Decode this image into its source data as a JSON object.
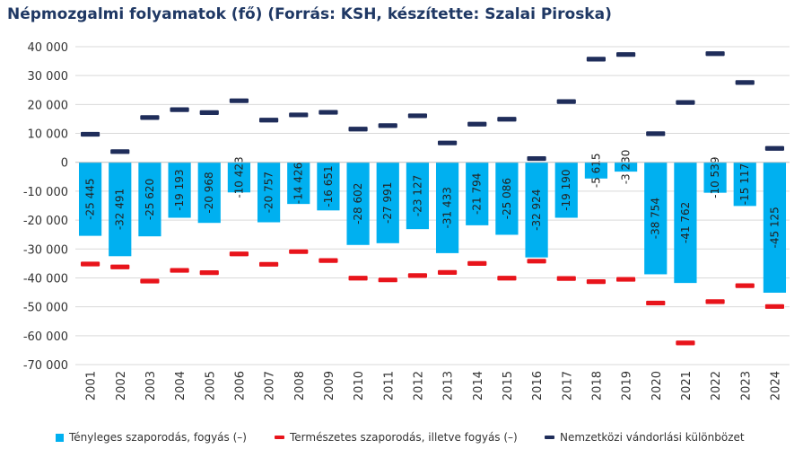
{
  "chart_data": {
    "type": "bar",
    "title": "Népmozgalmi folyamatok (fő) (Forrás: KSH, készítette: Szalai Piroska)",
    "categories": [
      "2001",
      "2002",
      "2003",
      "2004",
      "2005",
      "2006",
      "2007",
      "2008",
      "2009",
      "2010",
      "2011",
      "2012",
      "2013",
      "2014",
      "2015",
      "2016",
      "2017",
      "2018",
      "2019",
      "2020",
      "2021",
      "2022",
      "2023",
      "2024"
    ],
    "ylim": [
      -70000,
      40000
    ],
    "yticks": [
      40000,
      30000,
      20000,
      10000,
      0,
      -10000,
      -20000,
      -30000,
      -40000,
      -50000,
      -60000,
      -70000
    ],
    "ytick_labels": [
      "40 000",
      "30 000",
      "20 000",
      "10 000",
      "0",
      "-10 000",
      "-20 000",
      "-30 000",
      "-40 000",
      "-50 000",
      "-60 000",
      "-70 000"
    ],
    "grid": true,
    "legend_position": "bottom",
    "series": [
      {
        "name": "Tényleges szaporodás, fogyás (–)",
        "type": "bar",
        "color": "#00b0f0",
        "values": [
          -25445,
          -32491,
          -25620,
          -19193,
          -20968,
          -10423,
          -20757,
          -14426,
          -16651,
          -28602,
          -27991,
          -23127,
          -31433,
          -21794,
          -25086,
          -32924,
          -19190,
          -5615,
          -3230,
          -38754,
          -41762,
          -10539,
          -15117,
          -45125
        ],
        "labels": [
          "-25 445",
          "-32 491",
          "-25 620",
          "-19 193",
          "-20 968",
          "-10 423",
          "-20 757",
          "-14 426",
          "-16 651",
          "-28 602",
          "-27 991",
          "-23 127",
          "-31 433",
          "-21 794",
          "-25 086",
          "-32 924",
          "-19 190",
          "-5 615",
          "-3 230",
          "-38 754",
          "-41 762",
          "-10 539",
          "-15 117",
          "-45 125"
        ]
      },
      {
        "name": "Természetes szaporodás, illetve fogyás (–)",
        "type": "marker",
        "color": "#e8141b",
        "values": [
          -35200,
          -36200,
          -41100,
          -37400,
          -38200,
          -31700,
          -35300,
          -30900,
          -34000,
          -40100,
          -40700,
          -39200,
          -38100,
          -35000,
          -40100,
          -34200,
          -40200,
          -41300,
          -40500,
          -48700,
          -62500,
          -48200,
          -42700,
          -49900
        ]
      },
      {
        "name": "Nemzetközi vándorlási különbözet",
        "type": "marker",
        "color": "#1f2d5a",
        "values": [
          9700,
          3700,
          15500,
          18200,
          17200,
          21300,
          14600,
          16400,
          17300,
          11500,
          12700,
          16100,
          6700,
          13200,
          14900,
          1300,
          21000,
          35700,
          37300,
          9900,
          20700,
          37600,
          27600,
          4800
        ]
      }
    ]
  }
}
